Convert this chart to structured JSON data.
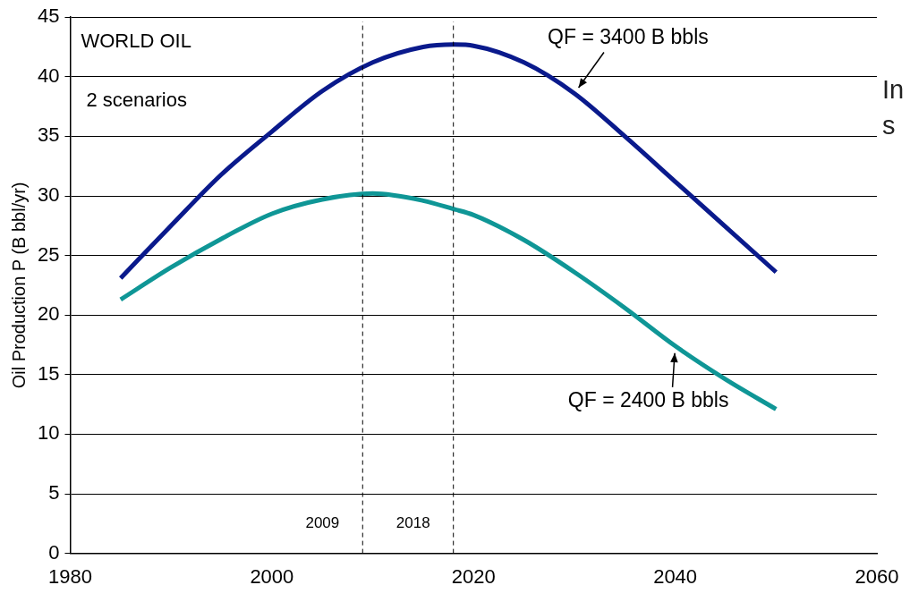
{
  "chart_data": {
    "type": "line",
    "ylabel": "Oil Production P (B bbl/yr)",
    "x": [
      1985,
      1990,
      1995,
      2000,
      2005,
      2010,
      2015,
      2018,
      2020,
      2025,
      2030,
      2035,
      2040,
      2045,
      2050
    ],
    "series": [
      {
        "color": "#0a1a8c",
        "values": [
          23.1,
          27.5,
          31.8,
          35.4,
          38.8,
          41.2,
          42.5,
          42.7,
          42.6,
          41.2,
          38.6,
          35.0,
          31.2,
          27.4,
          23.6
        ]
      },
      {
        "color": "#0f9696",
        "values": [
          21.3,
          24.0,
          26.4,
          28.5,
          29.7,
          30.2,
          29.6,
          28.9,
          28.4,
          26.3,
          23.6,
          20.6,
          17.4,
          14.6,
          12.1
        ]
      }
    ],
    "xlim": [
      1980,
      2060
    ],
    "xticks": [
      1980,
      2000,
      2020,
      2040,
      2060
    ],
    "ylim": [
      0,
      45
    ],
    "yticks": [
      0,
      5,
      10,
      15,
      20,
      25,
      30,
      35,
      40,
      45
    ],
    "grid": "y",
    "legend": false,
    "marker": "none",
    "line_style": "solid",
    "ref_lines": [
      {
        "axis": "x",
        "value": 2009,
        "label": "2009",
        "line_style": "dashed"
      },
      {
        "axis": "x",
        "value": 2018,
        "label": "2018",
        "line_style": "dashed"
      }
    ],
    "annotations": [
      "WORLD OIL",
      "2 scenarios",
      {
        "text": "QF = 3400 B bbls",
        "x": 2030,
        "y": 38.6
      },
      {
        "text": "QF = 2400 B bbls",
        "x": 2040,
        "y": 17.4
      },
      "In",
      "s"
    ]
  }
}
